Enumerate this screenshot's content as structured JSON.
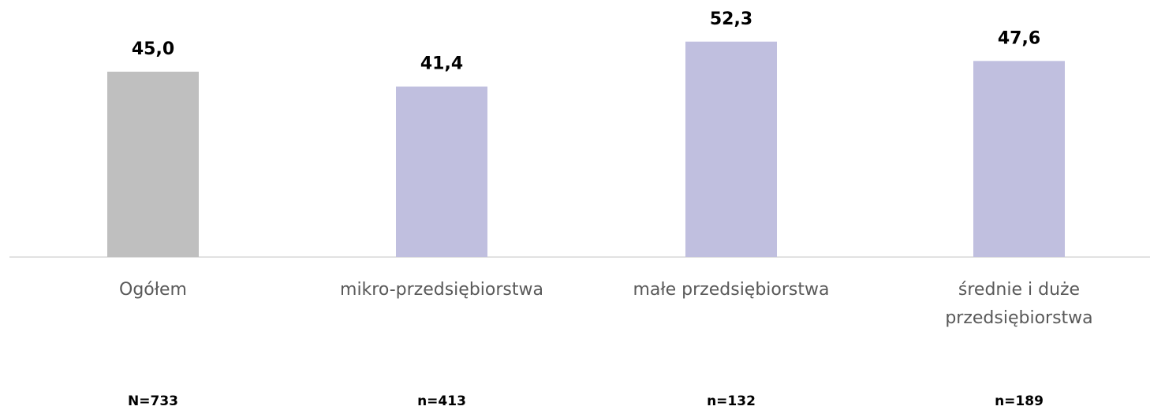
{
  "chart_data": {
    "type": "bar",
    "categories": [
      "Ogółem",
      "mikro-przedsiębiorstwa",
      "małe przedsiębiorstwa",
      "średnie i duże przedsiębiorstwa"
    ],
    "values": [
      45.0,
      41.4,
      52.3,
      47.6
    ],
    "value_labels": [
      "45,0",
      "41,4",
      "52,3",
      "47,6"
    ],
    "colors": [
      "#bfbfbf",
      "#c0bfdf",
      "#c0bfdf",
      "#c0bfdf"
    ],
    "sample_sizes": [
      "N=733",
      "n=413",
      "n=132",
      "n=189"
    ],
    "ylim": [
      0,
      62.4
    ]
  }
}
